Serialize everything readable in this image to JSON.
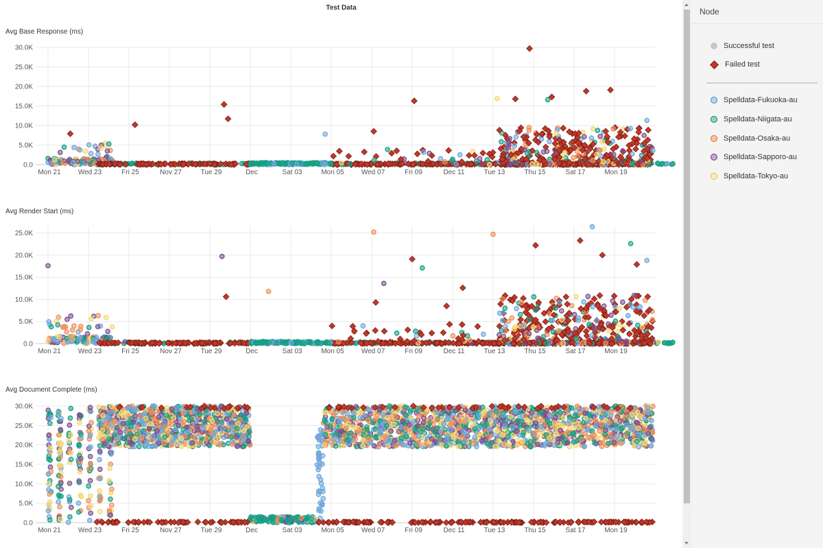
{
  "page_title": "Test Data",
  "legend": {
    "header": "Node",
    "status_items": [
      {
        "label": "Successful test",
        "symbol": "circle",
        "color": "#c8c8c8"
      },
      {
        "label": "Failed test",
        "symbol": "diamond",
        "color": "#c0392b"
      }
    ],
    "node_items": [
      {
        "label": "Spelldata-Fukuoka-au",
        "color": "#6fa8dc"
      },
      {
        "label": "Spelldata-Niigata-au",
        "color": "#16a085"
      },
      {
        "label": "Spelldata-Osaka-au",
        "color": "#f0905a"
      },
      {
        "label": "Spelldata-Sapporo-au",
        "color": "#7d4e8e"
      },
      {
        "label": "Spelldata-Tokyo-au",
        "color": "#f7d774"
      }
    ]
  },
  "colors": {
    "Fukuoka": "#6fa8dc",
    "Niigata": "#16a085",
    "Osaka": "#f0905a",
    "Sapporo": "#7d4e8e",
    "Tokyo": "#f7d774",
    "failed": "#c0392b",
    "failed_stroke": "#7a1d12",
    "grid": "#e8e8e8"
  },
  "chart_data": [
    {
      "type": "scatter",
      "title": "Avg Base Response (ms)",
      "ylim": [
        0,
        30000
      ],
      "yticks": [
        "0.0",
        "5.0K",
        "10.0K",
        "15.0K",
        "20.0K",
        "25.0K",
        "30.0K"
      ],
      "x_tick_labels": [
        "Mon 21",
        "Wed 23",
        "Fri 25",
        "Nov 27",
        "Tue 29",
        "Dec",
        "Sat 03",
        "Mon 05",
        "Wed 07",
        "Fri 09",
        "Dec 11",
        "Tue 13",
        "Thu 15",
        "Sat 17",
        "Mon 19"
      ],
      "failed_highlights": [
        {
          "x": 4.3,
          "y": 10200
        },
        {
          "x": 8.7,
          "y": 15400
        },
        {
          "x": 8.9,
          "y": 11700
        },
        {
          "x": 18.1,
          "y": 16300
        },
        {
          "x": 23.1,
          "y": 16800
        },
        {
          "x": 23.8,
          "y": 29700
        },
        {
          "x": 24.9,
          "y": 17300
        },
        {
          "x": 26.6,
          "y": 18800
        },
        {
          "x": 27.8,
          "y": 19100
        },
        {
          "x": 1.1,
          "y": 7900
        },
        {
          "x": 16.1,
          "y": 8500
        }
      ],
      "success_highlights": [
        {
          "x": 13.7,
          "y": 7800,
          "node": "Fukuoka"
        },
        {
          "x": 22.2,
          "y": 16900,
          "node": "Tokyo"
        },
        {
          "x": 29.6,
          "y": 11300,
          "node": "Fukuoka"
        },
        {
          "x": 24.7,
          "y": 16600,
          "node": "Niigata"
        }
      ]
    },
    {
      "type": "scatter",
      "title": "Avg Render Start (ms)",
      "ylim": [
        0,
        26500
      ],
      "yticks": [
        "0.0",
        "5.0K",
        "10.0K",
        "15.0K",
        "20.0K",
        "25.0K"
      ],
      "x_tick_labels": [
        "Mon 21",
        "Wed 23",
        "Fri 25",
        "Nov 27",
        "Tue 29",
        "Dec",
        "Sat 03",
        "Mon 05",
        "Wed 07",
        "Fri 09",
        "Dec 11",
        "Tue 13",
        "Thu 15",
        "Sat 17",
        "Mon 19"
      ],
      "failed_highlights": [
        {
          "x": 8.8,
          "y": 10600
        },
        {
          "x": 18.0,
          "y": 19100
        },
        {
          "x": 16.2,
          "y": 9300
        },
        {
          "x": 19.7,
          "y": 8500
        },
        {
          "x": 20.5,
          "y": 12600
        },
        {
          "x": 27.4,
          "y": 20000
        },
        {
          "x": 26.3,
          "y": 23300
        },
        {
          "x": 24.1,
          "y": 22200
        },
        {
          "x": 29.1,
          "y": 17900
        }
      ],
      "success_highlights": [
        {
          "x": 0.0,
          "y": 17600,
          "node": "Sapporo"
        },
        {
          "x": 8.6,
          "y": 19700,
          "node": "Sapporo"
        },
        {
          "x": 16.1,
          "y": 25200,
          "node": "Osaka"
        },
        {
          "x": 10.9,
          "y": 11800,
          "node": "Osaka"
        },
        {
          "x": 16.6,
          "y": 13600,
          "node": "Sapporo"
        },
        {
          "x": 18.5,
          "y": 17100,
          "node": "Niigata"
        },
        {
          "x": 26.9,
          "y": 26400,
          "node": "Fukuoka"
        },
        {
          "x": 28.8,
          "y": 22600,
          "node": "Niigata"
        },
        {
          "x": 29.6,
          "y": 18800,
          "node": "Fukuoka"
        },
        {
          "x": 22.0,
          "y": 24700,
          "node": "Osaka"
        }
      ]
    },
    {
      "type": "scatter",
      "title": "Avg Document Complete (ms)",
      "ylim": [
        0,
        30000
      ],
      "yticks": [
        "0.0",
        "5.0K",
        "10.0K",
        "15.0K",
        "20.0K",
        "25.0K",
        "30.0K"
      ],
      "x_tick_labels": [
        "Mon 21",
        "Wed 23",
        "Fri 25",
        "Nov 27",
        "Tue 29",
        "Dec",
        "Sat 03",
        "Mon 05",
        "Wed 07",
        "Fri 09",
        "Dec 11",
        "Tue 13",
        "Thu 15",
        "Sat 17",
        "Mon 19"
      ],
      "failed_highlights": [],
      "success_highlights": []
    }
  ]
}
